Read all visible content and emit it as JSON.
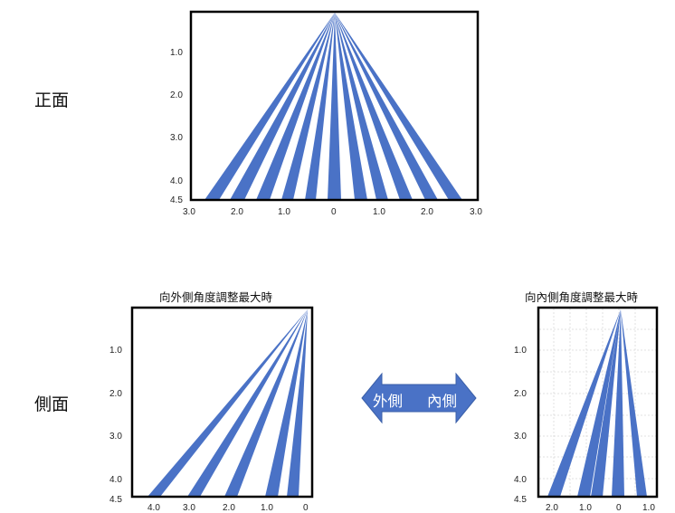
{
  "labels": {
    "front": "正面",
    "side": "側面"
  },
  "front": {
    "y_ticks": [
      "1.0",
      "2.0",
      "3.0",
      "4.0",
      "4.5"
    ],
    "x_ticks": [
      "3.0",
      "2.0",
      "1.0",
      "0",
      "1.0",
      "2.0",
      "3.0"
    ]
  },
  "side_outward": {
    "title": "向外側角度調整最大時",
    "y_ticks": [
      "1.0",
      "2.0",
      "3.0",
      "4.0",
      "4.5"
    ],
    "x_ticks": [
      "4.0",
      "3.0",
      "2.0",
      "1.0",
      "0"
    ]
  },
  "side_inward": {
    "title": "向內側角度調整最大時",
    "y_ticks": [
      "1.0",
      "2.0",
      "3.0",
      "4.0",
      "4.5"
    ],
    "x_ticks": [
      "2.0",
      "1.0",
      "0",
      "1.0"
    ]
  },
  "arrow": {
    "left": "外側",
    "right": "內側",
    "color": "#4a72c6"
  }
}
